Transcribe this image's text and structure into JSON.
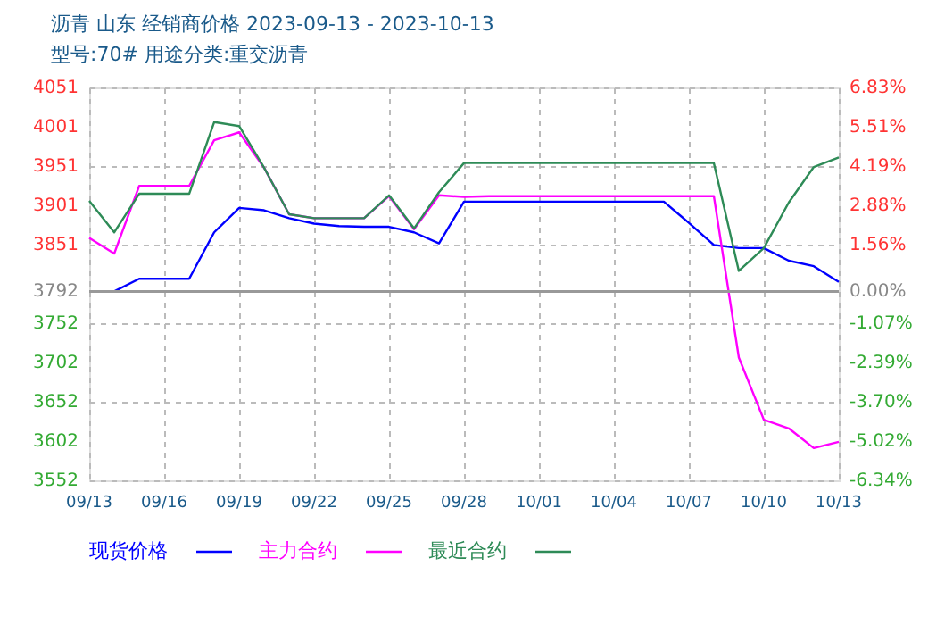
{
  "chart_data": {
    "type": "line",
    "title": "沥青  山东  经销商价格  2023-09-13 - 2023-10-13",
    "subtitle": "型号:70#  用途分类:重交沥青",
    "x": [
      "2023-09-13",
      "2023-09-14",
      "2023-09-15",
      "2023-09-16",
      "2023-09-17",
      "2023-09-18",
      "2023-09-19",
      "2023-09-20",
      "2023-09-21",
      "2023-09-22",
      "2023-09-23",
      "2023-09-24",
      "2023-09-25",
      "2023-09-26",
      "2023-09-27",
      "2023-09-28",
      "2023-09-29",
      "2023-09-30",
      "2023-10-01",
      "2023-10-02",
      "2023-10-03",
      "2023-10-04",
      "2023-10-05",
      "2023-10-06",
      "2023-10-07",
      "2023-10-08",
      "2023-10-09",
      "2023-10-10",
      "2023-10-11",
      "2023-10-12",
      "2023-10-13"
    ],
    "series": [
      {
        "name": "现货价格",
        "color": "#0000ff",
        "values": [
          3792,
          3792,
          3808,
          3808,
          3808,
          3867,
          3898,
          3895,
          3885,
          3878,
          3875,
          3874,
          3874,
          3867,
          3853,
          3906,
          3906,
          3906,
          3906,
          3906,
          3906,
          3906,
          3906,
          3906,
          3879,
          3851,
          3847,
          3847,
          3831,
          3824,
          3804
        ]
      },
      {
        "name": "主力合约",
        "color": "#ff00ff",
        "values": [
          3860,
          3840,
          3926,
          3926,
          3926,
          3984,
          3994,
          3949,
          3890,
          3885,
          3885,
          3885,
          3913,
          3871,
          3914,
          3912,
          3913,
          3913,
          3913,
          3913,
          3913,
          3913,
          3913,
          3913,
          3913,
          3913,
          3708,
          3629,
          3618,
          3593,
          3601
        ]
      },
      {
        "name": "最近合约",
        "color": "#2e8b57",
        "values": [
          3907,
          3867,
          3916,
          3916,
          3916,
          4007,
          4002,
          3949,
          3890,
          3885,
          3885,
          3885,
          3914,
          3872,
          3918,
          3955,
          3955,
          3955,
          3955,
          3955,
          3955,
          3955,
          3955,
          3955,
          3955,
          3955,
          3818,
          3847,
          3905,
          3950,
          3962
        ]
      }
    ],
    "xlim": [
      "2023-09-13",
      "2023-10-13"
    ],
    "xticks": [
      {
        "value": "2023-09-13",
        "label": "09/13"
      },
      {
        "value": "2023-09-16",
        "label": "09/16"
      },
      {
        "value": "2023-09-19",
        "label": "09/19"
      },
      {
        "value": "2023-09-22",
        "label": "09/22"
      },
      {
        "value": "2023-09-25",
        "label": "09/25"
      },
      {
        "value": "2023-09-28",
        "label": "09/28"
      },
      {
        "value": "2023-10-01",
        "label": "10/01"
      },
      {
        "value": "2023-10-04",
        "label": "10/04"
      },
      {
        "value": "2023-10-07",
        "label": "10/07"
      },
      {
        "value": "2023-10-10",
        "label": "10/10"
      },
      {
        "value": "2023-10-13",
        "label": "10/13"
      }
    ],
    "ylim": [
      3552,
      4051
    ],
    "yticks": [
      3552,
      3602,
      3652,
      3702,
      3752,
      3792,
      3851,
      3901,
      3951,
      4001,
      4051
    ],
    "y2lim": [
      -6.34,
      6.83
    ],
    "y2ticks": [
      {
        "value": -6.34,
        "label": "-6.34%"
      },
      {
        "value": -5.02,
        "label": "-5.02%"
      },
      {
        "value": -3.7,
        "label": "-3.70%"
      },
      {
        "value": -2.39,
        "label": "-2.39%"
      },
      {
        "value": -1.07,
        "label": "-1.07%"
      },
      {
        "value": 0,
        "label": "0.00%"
      },
      {
        "value": 1.56,
        "label": "1.56%"
      },
      {
        "value": 2.88,
        "label": "2.88%"
      },
      {
        "value": 4.19,
        "label": "4.19%"
      },
      {
        "value": 5.51,
        "label": "5.51%"
      },
      {
        "value": 6.83,
        "label": "6.83%"
      }
    ],
    "ref_lines": [
      {
        "axis": "y",
        "value": 3792,
        "color": "#999999",
        "line_style": "solid"
      }
    ],
    "grid": true,
    "legend": "bottom left",
    "marker": "none",
    "line_style": "solid"
  }
}
